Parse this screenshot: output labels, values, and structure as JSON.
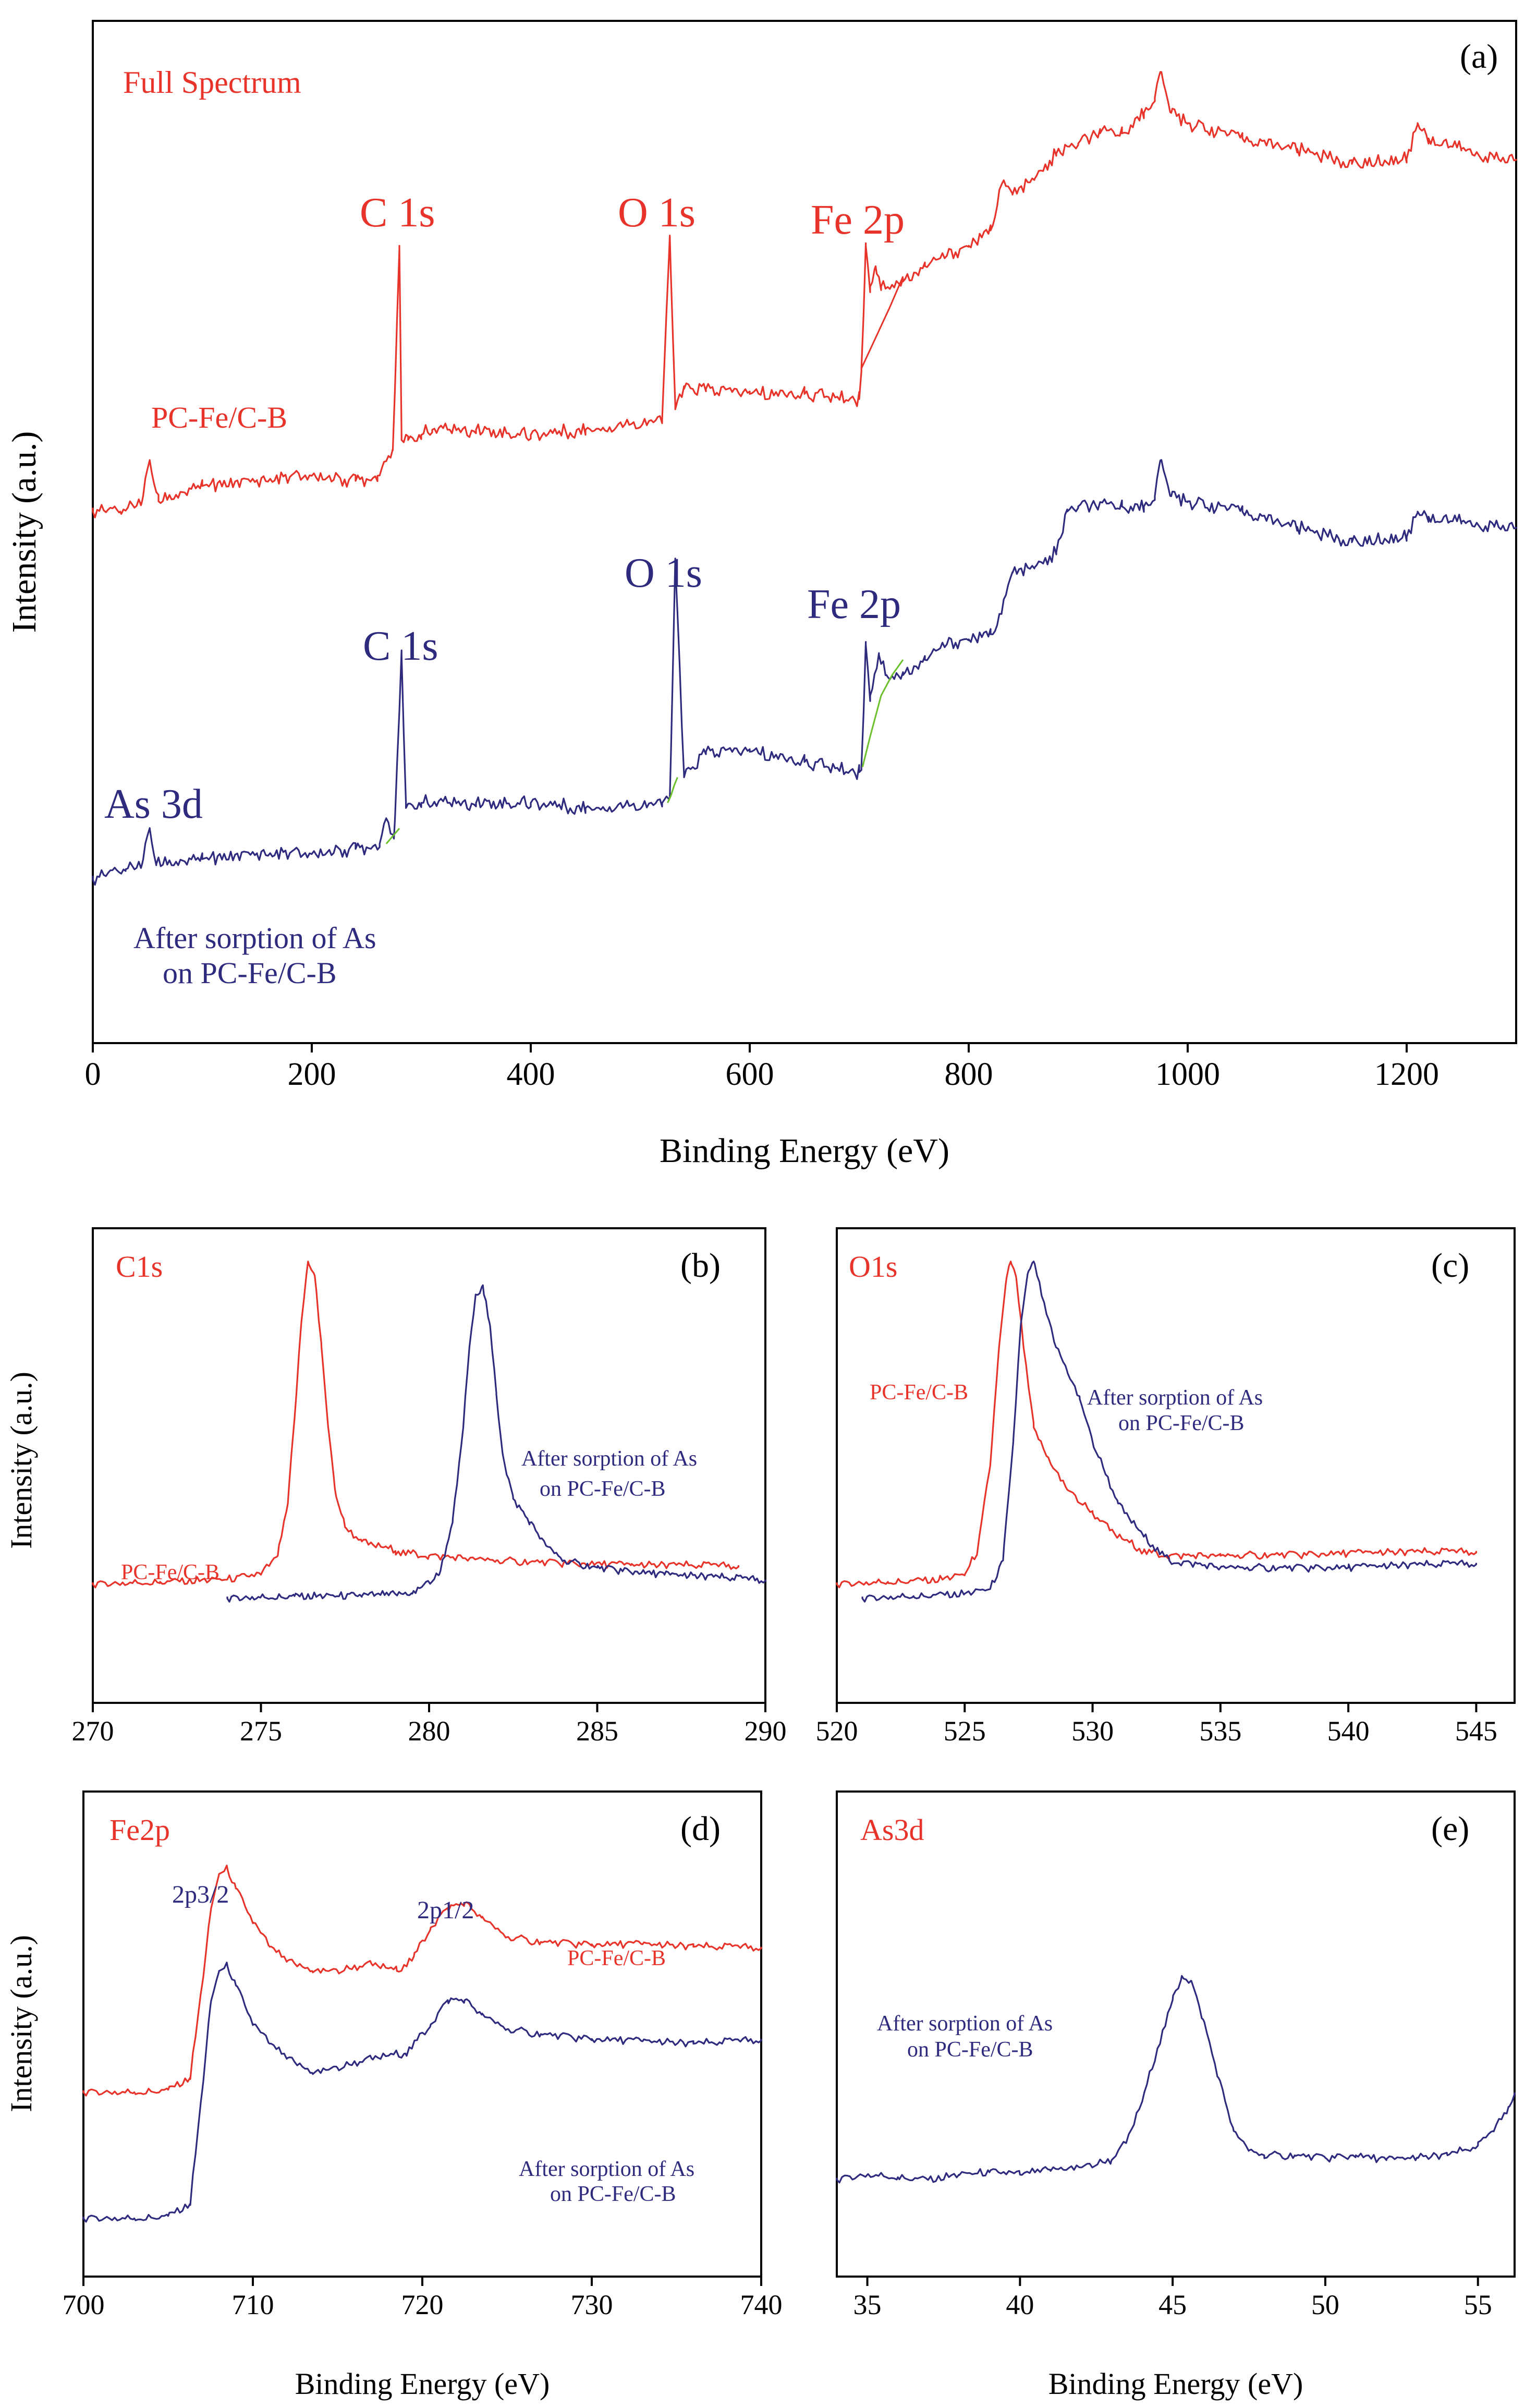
{
  "colors": {
    "red": "#e8332a",
    "blue": "#2e2a7e",
    "green": "#6bbf2a",
    "axis": "#000000"
  },
  "chart_data": [
    {
      "id": "a",
      "type": "line",
      "panel_label": "(a)",
      "title": "Full Spectrum",
      "xlabel": "Binding Energy (eV)",
      "ylabel": "Intensity (a.u.)",
      "xlim": [
        0,
        1300
      ],
      "ylim": [
        0,
        100
      ],
      "xticks": [
        0,
        200,
        400,
        600,
        800,
        1000,
        1200
      ],
      "y_ticks_shown": false,
      "series": [
        {
          "name": "PC-Fe/C-B",
          "color": "red",
          "x": [
            0,
            25,
            45,
            52,
            60,
            100,
            150,
            200,
            240,
            260,
            274,
            280,
            282,
            288,
            300,
            310,
            350,
            400,
            450,
            520,
            527,
            532,
            540,
            560,
            600,
            650,
            700,
            702,
            706,
            710,
            715,
            720,
            740,
            760,
            780,
            800,
            820,
            830,
            840,
            860,
            880,
            900,
            920,
            940,
            960,
            970,
            975,
            985,
            1000,
            1050,
            1100,
            1150,
            1200,
            1210,
            1220,
            1250,
            1280,
            1300
          ],
          "y": [
            52,
            52,
            53,
            57,
            53,
            54.5,
            55,
            55.5,
            55,
            55.5,
            58,
            78,
            59,
            59,
            59.5,
            60,
            60,
            59.5,
            60,
            61,
            79,
            62,
            64,
            64,
            63.5,
            63.5,
            63,
            66,
            78,
            74,
            76,
            74,
            74.5,
            76,
            77,
            78,
            79.5,
            84,
            83,
            84.5,
            87,
            88,
            89,
            89,
            91,
            92.5,
            95,
            91,
            90,
            88.5,
            87.5,
            86,
            86.5,
            90,
            88.5,
            87.5,
            86.5,
            86.5
          ]
        },
        {
          "name": "After sorption of As on PC-Fe/C-B",
          "color": "blue",
          "x": [
            0,
            30,
            45,
            52,
            58,
            100,
            150,
            200,
            240,
            262,
            268,
            275,
            282,
            286,
            300,
            350,
            400,
            450,
            520,
            527,
            532,
            540,
            560,
            600,
            650,
            700,
            702,
            706,
            710,
            718,
            725,
            740,
            760,
            780,
            800,
            820,
            830,
            840,
            860,
            880,
            890,
            900,
            940,
            960,
            970,
            975,
            985,
            1000,
            1050,
            1100,
            1150,
            1200,
            1210,
            1220,
            1250,
            1280,
            1300
          ],
          "y": [
            16,
            17,
            17.5,
            21,
            17.5,
            18,
            18.5,
            18.5,
            19,
            19.5,
            22,
            20,
            38,
            23,
            23.5,
            23.5,
            23.5,
            23,
            23.5,
            24,
            47,
            26,
            28.5,
            28.5,
            27.5,
            26.5,
            27,
            39,
            34,
            38,
            36,
            36,
            37.5,
            39,
            39.5,
            40,
            42,
            46,
            46.5,
            48,
            52,
            52.5,
            52.5,
            52.5,
            53.5,
            57,
            53.5,
            53,
            52,
            50.5,
            49,
            49.5,
            52,
            51.5,
            51,
            50.5,
            50.5
          ]
        },
        {
          "name": "",
          "color": "green",
          "x": [
            268,
            272,
            276,
            280
          ],
          "y": [
            19.5,
            20,
            20.5,
            21
          ],
          "segments": [
            {
              "x": [
                268,
                272,
                276,
                280
              ],
              "y": [
                19.5,
                20,
                20.5,
                21
              ]
            },
            {
              "x": [
                525,
                528,
                531,
                534
              ],
              "y": [
                23.5,
                24.2,
                25.2,
                26
              ]
            },
            {
              "x": [
                703,
                710,
                720,
                730,
                740
              ],
              "y": [
                27,
                30,
                34,
                36,
                37.5
              ]
            }
          ]
        },
        {
          "name": "",
          "color": "red_baseline",
          "x": [
            702,
            715,
            728,
            740
          ],
          "y": [
            66,
            69,
            72,
            75
          ]
        }
      ],
      "annotations": [
        {
          "text": "C 1s",
          "color": "red"
        },
        {
          "text": "O 1s",
          "color": "red"
        },
        {
          "text": "Fe 2p",
          "color": "red"
        },
        {
          "text": "PC-Fe/C-B",
          "color": "red"
        },
        {
          "text": "C 1s",
          "color": "blue"
        },
        {
          "text": "O 1s",
          "color": "blue"
        },
        {
          "text": "Fe 2p",
          "color": "blue"
        },
        {
          "text": "As 3d",
          "color": "blue"
        },
        {
          "text": "After sorption of As",
          "color": "blue"
        },
        {
          "text": "on PC-Fe/C-B",
          "color": "blue"
        }
      ]
    },
    {
      "id": "b",
      "type": "line",
      "panel_label": "(b)",
      "title": "C1s",
      "xlabel": "",
      "ylabel": "Intensity (a.u.)",
      "xlim": [
        270,
        290
      ],
      "ylim": [
        0,
        100
      ],
      "xticks": [
        270,
        275,
        280,
        285,
        290
      ],
      "y_ticks_shown": false,
      "series": [
        {
          "name": "PC-Fe/C-B",
          "color": "red",
          "x": [
            270,
            272,
            274,
            275,
            275.5,
            275.8,
            276.0,
            276.2,
            276.4,
            276.6,
            276.8,
            277.0,
            277.2,
            277.5,
            278,
            279,
            280,
            282,
            284,
            286,
            289.2
          ],
          "y": [
            25,
            25.5,
            26,
            27,
            31,
            42,
            60,
            80,
            93,
            90,
            75,
            58,
            45,
            37,
            34,
            32,
            31,
            30,
            29.5,
            29,
            29
          ]
        },
        {
          "name": "After sorption of As on PC-Fe/C-B",
          "color": "blue",
          "x": [
            274,
            276,
            278,
            279.5,
            280.3,
            280.7,
            281.0,
            281.2,
            281.4,
            281.6,
            281.8,
            282.0,
            282.2,
            282.5,
            283,
            283.5,
            284,
            285,
            287,
            290
          ],
          "y": [
            22,
            22.5,
            22.5,
            23,
            27,
            38,
            57,
            75,
            86,
            88,
            80,
            65,
            52,
            43,
            38,
            33,
            30,
            28.5,
            27,
            26
          ]
        }
      ],
      "annotations": [
        {
          "text": "PC-Fe/C-B",
          "color": "red"
        },
        {
          "text": "After sorption of As",
          "color": "blue"
        },
        {
          "text": "on PC-Fe/C-B",
          "color": "blue"
        }
      ]
    },
    {
      "id": "c",
      "type": "line",
      "panel_label": "(c)",
      "title": "O1s",
      "xlabel": "",
      "ylabel": "",
      "xlim": [
        520,
        546.5
      ],
      "ylim": [
        0,
        100
      ],
      "xticks": [
        520,
        525,
        530,
        535,
        540,
        545
      ],
      "y_ticks_shown": false,
      "series": [
        {
          "name": "PC-Fe/C-B",
          "color": "red",
          "x": [
            520,
            522,
            524,
            525,
            525.5,
            526.0,
            526.3,
            526.6,
            526.8,
            527.0,
            527.3,
            527.7,
            528.2,
            529.0,
            530.0,
            531.0,
            532.0,
            533.0,
            535,
            540,
            545
          ],
          "y": [
            25,
            25.5,
            26,
            27,
            32,
            50,
            72,
            88,
            93,
            90,
            75,
            58,
            52,
            45,
            40,
            35,
            32,
            31,
            31,
            31.5,
            32
          ]
        },
        {
          "name": "After sorption of As on PC-Fe/C-B",
          "color": "blue",
          "x": [
            521,
            523,
            525,
            526.0,
            526.5,
            526.9,
            527.2,
            527.5,
            527.7,
            528.0,
            528.5,
            529.0,
            529.5,
            530.0,
            531.0,
            532.0,
            533.0,
            535,
            540,
            545
          ],
          "y": [
            22,
            22.5,
            23,
            24,
            30,
            55,
            80,
            91,
            93,
            86,
            76,
            70,
            64,
            55,
            42,
            35,
            30,
            28.5,
            28.5,
            29.5
          ]
        }
      ],
      "annotations": [
        {
          "text": "PC-Fe/C-B",
          "color": "red"
        },
        {
          "text": "After sorption of As",
          "color": "blue"
        },
        {
          "text": "on PC-Fe/C-B",
          "color": "blue"
        }
      ]
    },
    {
      "id": "d",
      "type": "line",
      "panel_label": "(d)",
      "title": "Fe2p",
      "xlabel": "Binding Energy (eV)",
      "ylabel": "Intensity (a.u.)",
      "xlim": [
        700,
        740
      ],
      "ylim": [
        0,
        100
      ],
      "xticks": [
        700,
        710,
        720,
        730,
        740
      ],
      "y_ticks_shown": false,
      "series": [
        {
          "name": "PC-Fe/C-B",
          "color": "red",
          "x": [
            700,
            703,
            705,
            706.3,
            707.0,
            707.5,
            708.0,
            708.5,
            709.0,
            710,
            711,
            712,
            713.5,
            715,
            717,
            718.5,
            719.5,
            720.5,
            721.5,
            722.5,
            723.5,
            725,
            727,
            730,
            733,
            736,
            740
          ],
          "y": [
            38,
            38,
            38.5,
            41,
            60,
            75,
            83,
            84,
            80,
            73,
            68,
            65,
            63,
            63,
            64.5,
            63,
            66,
            72,
            76,
            77,
            74,
            70,
            69,
            68.5,
            68.5,
            68,
            68
          ]
        },
        {
          "name": "After sorption of As on PC-Fe/C-B",
          "color": "blue",
          "x": [
            700,
            703,
            705,
            706.3,
            707.0,
            707.5,
            708.0,
            708.5,
            709.0,
            710,
            711,
            712,
            713.5,
            715,
            717,
            719,
            720.5,
            721.5,
            722.5,
            723.5,
            725,
            727,
            730,
            733,
            736,
            740
          ],
          "y": [
            12,
            12,
            12.5,
            15,
            38,
            56,
            63,
            64,
            60,
            52,
            48,
            45,
            42,
            43,
            45,
            46,
            52,
            57,
            57,
            54,
            51,
            50,
            49,
            48.5,
            48,
            49
          ]
        }
      ],
      "annotations": [
        {
          "text": "2p3/2",
          "color": "blue"
        },
        {
          "text": "2p1/2",
          "color": "blue"
        },
        {
          "text": "PC-Fe/C-B",
          "color": "red"
        },
        {
          "text": "After sorption of As",
          "color": "blue"
        },
        {
          "text": "on PC-Fe/C-B",
          "color": "blue"
        }
      ]
    },
    {
      "id": "e",
      "type": "line",
      "panel_label": "(e)",
      "title": "As3d",
      "xlabel": "Binding Energy (eV)",
      "ylabel": "",
      "xlim": [
        34,
        56.2
      ],
      "ylim": [
        0,
        100
      ],
      "xticks": [
        35,
        40,
        45,
        50,
        55
      ],
      "y_ticks_shown": false,
      "series": [
        {
          "name": "After sorption of As on PC-Fe/C-B",
          "color": "blue",
          "x": [
            34,
            35,
            36,
            37,
            38,
            39,
            40,
            41,
            42,
            43,
            43.5,
            44.0,
            44.5,
            45.0,
            45.3,
            45.6,
            46.0,
            46.5,
            47.0,
            47.5,
            48,
            49,
            50,
            51,
            52,
            53,
            54,
            55,
            55.5,
            56,
            56.2
          ],
          "y": [
            20,
            21,
            20.5,
            20,
            21,
            21.5,
            21,
            22,
            22.5,
            24,
            28,
            36,
            47,
            57,
            62,
            61,
            53,
            41,
            30,
            26,
            25,
            25,
            24.5,
            25,
            24,
            24.5,
            25,
            27,
            30,
            35,
            38
          ]
        }
      ],
      "annotations": [
        {
          "text": "After sorption of As",
          "color": "blue"
        },
        {
          "text": "on PC-Fe/C-B",
          "color": "blue"
        }
      ]
    }
  ]
}
